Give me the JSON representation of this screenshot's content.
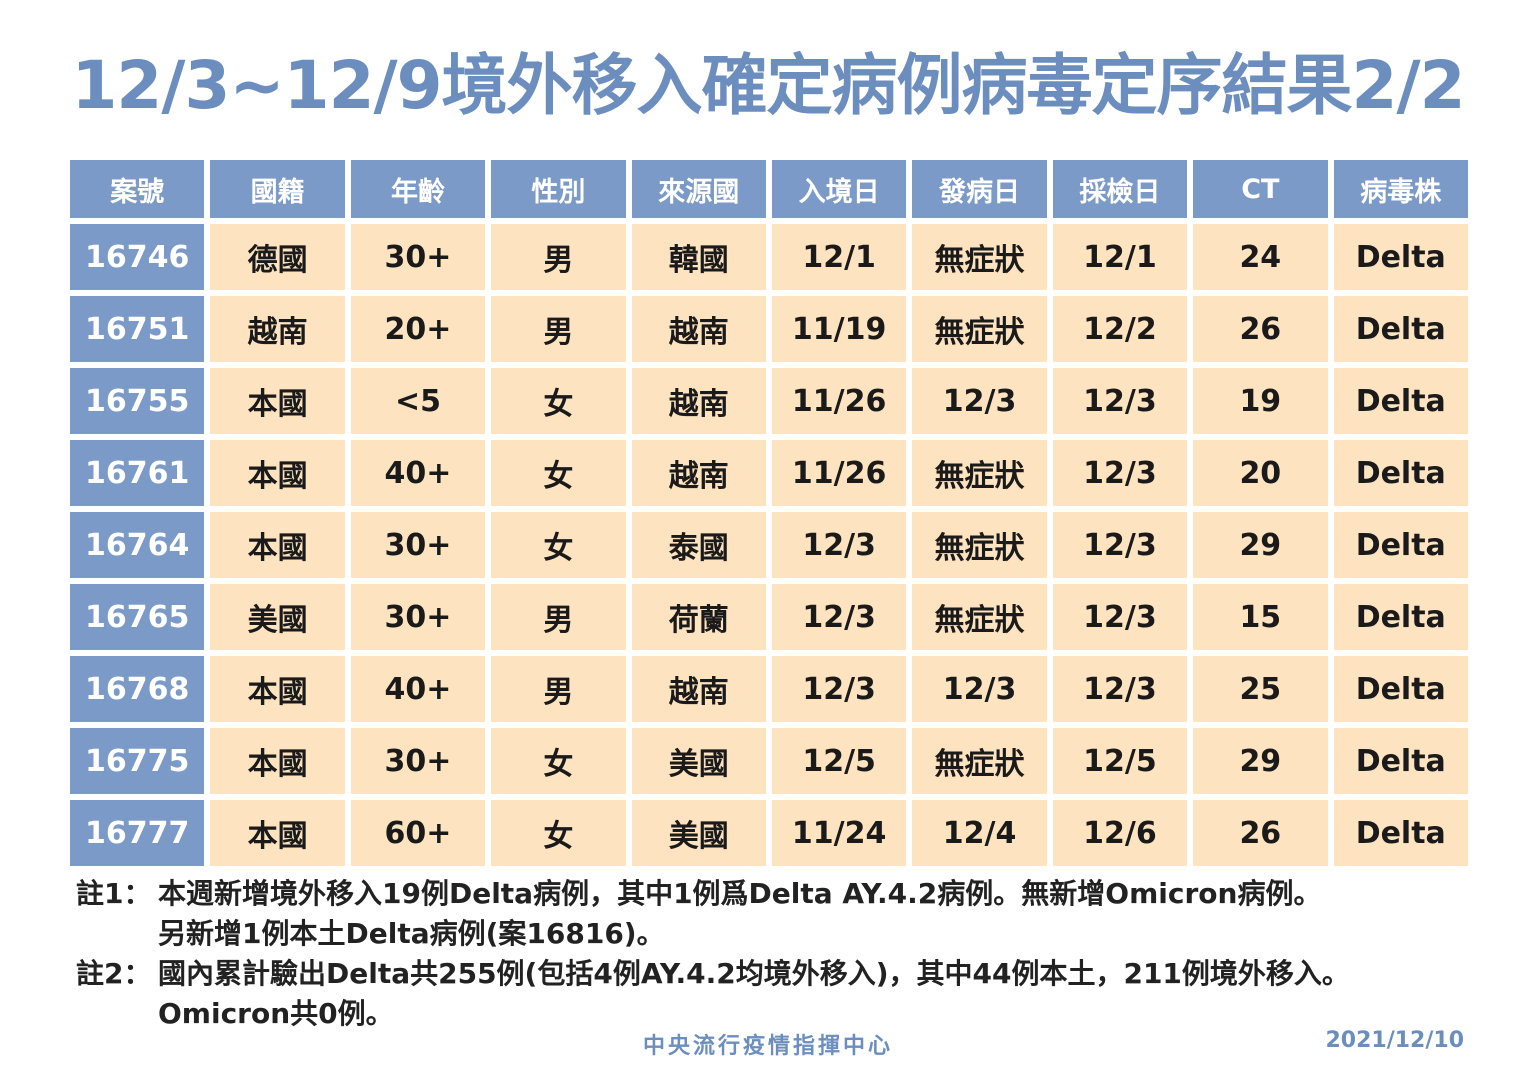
{
  "title": "12/3~12/9境外移入確定病例病毒定序結果2/2",
  "table": {
    "headers": [
      "案號",
      "國籍",
      "年齡",
      "性別",
      "來源國",
      "入境日",
      "發病日",
      "採檢日",
      "CT",
      "病毒株"
    ],
    "rows": [
      [
        "16746",
        "德國",
        "30+",
        "男",
        "韓國",
        "12/1",
        "無症狀",
        "12/1",
        "24",
        "Delta"
      ],
      [
        "16751",
        "越南",
        "20+",
        "男",
        "越南",
        "11/19",
        "無症狀",
        "12/2",
        "26",
        "Delta"
      ],
      [
        "16755",
        "本國",
        "<5",
        "女",
        "越南",
        "11/26",
        "12/3",
        "12/3",
        "19",
        "Delta"
      ],
      [
        "16761",
        "本國",
        "40+",
        "女",
        "越南",
        "11/26",
        "無症狀",
        "12/3",
        "20",
        "Delta"
      ],
      [
        "16764",
        "本國",
        "30+",
        "女",
        "泰國",
        "12/3",
        "無症狀",
        "12/3",
        "29",
        "Delta"
      ],
      [
        "16765",
        "美國",
        "30+",
        "男",
        "荷蘭",
        "12/3",
        "無症狀",
        "12/3",
        "15",
        "Delta"
      ],
      [
        "16768",
        "本國",
        "40+",
        "男",
        "越南",
        "12/3",
        "12/3",
        "12/3",
        "25",
        "Delta"
      ],
      [
        "16775",
        "本國",
        "30+",
        "女",
        "美國",
        "12/5",
        "無症狀",
        "12/5",
        "29",
        "Delta"
      ],
      [
        "16777",
        "本國",
        "60+",
        "女",
        "美國",
        "11/24",
        "12/4",
        "12/6",
        "26",
        "Delta"
      ]
    ]
  },
  "notes": {
    "note1_label": "註1：",
    "note1_line1": "本週新增境外移入19例Delta病例，其中1例爲Delta AY.4.2病例。無新增Omicron病例。",
    "note1_line2": "另新增1例本土Delta病例(案16816)。",
    "note2_label": "註2：",
    "note2_line1": "國內累計驗出Delta共255例(包括4例AY.4.2均境外移入)，其中44例本土，211例境外移入。",
    "note2_line2": "Omicron共0例。"
  },
  "footer": {
    "org": "中央流行疫情指揮中心",
    "date": "2021/12/10"
  }
}
